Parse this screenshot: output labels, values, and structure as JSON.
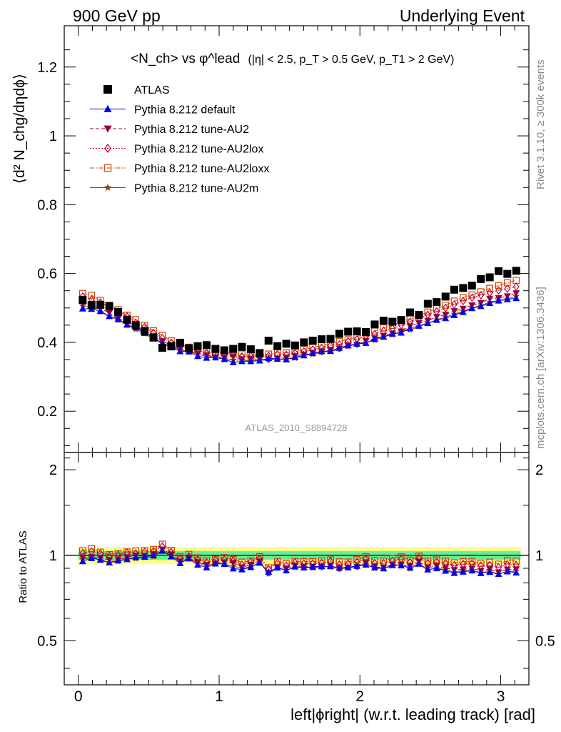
{
  "header": {
    "left": "900 GeV pp",
    "right": "Underlying Event"
  },
  "side_labels": {
    "rivet": "Rivet 3.1.10, ≥ 300k events",
    "mcplots": "mcplots.cern.ch [arXiv:1306.3436]"
  },
  "analysis_id": "ATLAS_2010_S8894728",
  "chart_data": {
    "type": "scatter",
    "title": {
      "quantity": "<N_ch> vs φ^lead",
      "cuts": "(|η| < 2.5, p_T > 0.5 GeV, p_T1 > 2 GeV)"
    },
    "xlabel": "left|ϕright| (w.r.t. leading track) [rad]",
    "ylabel": "⟨d² N_chg/dηdϕ⟩",
    "ratio_ylabel": "Ratio to ATLAS",
    "xlim": [
      -0.1,
      3.2
    ],
    "ylim": [
      0.08,
      1.32
    ],
    "ratio_ylim": [
      0.35,
      2.3
    ],
    "x_ticks": [
      0,
      1,
      2,
      3
    ],
    "y_ticks": [
      0.2,
      0.4,
      0.6,
      0.8,
      1,
      1.2
    ],
    "ratio_ticks": [
      0.5,
      1,
      2
    ],
    "x": [
      0.031,
      0.094,
      0.157,
      0.22,
      0.283,
      0.346,
      0.408,
      0.471,
      0.534,
      0.597,
      0.66,
      0.723,
      0.785,
      0.848,
      0.911,
      0.974,
      1.037,
      1.1,
      1.162,
      1.225,
      1.288,
      1.351,
      1.414,
      1.477,
      1.539,
      1.602,
      1.665,
      1.728,
      1.791,
      1.854,
      1.916,
      1.979,
      2.042,
      2.105,
      2.168,
      2.231,
      2.293,
      2.356,
      2.419,
      2.482,
      2.545,
      2.608,
      2.67,
      2.733,
      2.796,
      2.859,
      2.922,
      2.985,
      3.047,
      3.11
    ],
    "legend": [
      {
        "label": "ATLAS",
        "color": "#000000",
        "marker": "square-filled",
        "line": "none"
      },
      {
        "label": "Pythia 8.212 default",
        "color": "#0000ee",
        "marker": "triangle-up",
        "line": "solid"
      },
      {
        "label": "Pythia 8.212 tune-AU2",
        "color": "#990033",
        "marker": "triangle-down",
        "line": "dashed"
      },
      {
        "label": "Pythia 8.212 tune-AU2lox",
        "color": "#cc0033",
        "marker": "diamond-open",
        "line": "dotted"
      },
      {
        "label": "Pythia 8.212 tune-AU2loxx",
        "color": "#cc4400",
        "marker": "square-open",
        "line": "dashdot"
      },
      {
        "label": "Pythia 8.212 tune-AU2m",
        "color": "#994400",
        "marker": "star",
        "line": "solid"
      }
    ],
    "series": [
      {
        "name": "ATLAS",
        "values": [
          0.523,
          0.509,
          0.509,
          0.505,
          0.488,
          0.466,
          0.45,
          0.433,
          0.414,
          0.384,
          0.389,
          0.399,
          0.383,
          0.389,
          0.392,
          0.381,
          0.377,
          0.381,
          0.387,
          0.38,
          0.369,
          0.405,
          0.389,
          0.396,
          0.391,
          0.4,
          0.405,
          0.409,
          0.41,
          0.425,
          0.431,
          0.432,
          0.43,
          0.452,
          0.463,
          0.46,
          0.465,
          0.487,
          0.48,
          0.512,
          0.517,
          0.533,
          0.553,
          0.558,
          0.565,
          0.584,
          0.589,
          0.607,
          0.599,
          0.608
        ]
      },
      {
        "name": "Pythia 8.212 default",
        "values": [
          0.498,
          0.497,
          0.491,
          0.476,
          0.468,
          0.451,
          0.443,
          0.427,
          0.414,
          0.398,
          0.385,
          0.374,
          0.373,
          0.36,
          0.355,
          0.356,
          0.351,
          0.342,
          0.345,
          0.345,
          0.347,
          0.354,
          0.352,
          0.35,
          0.357,
          0.362,
          0.369,
          0.374,
          0.375,
          0.384,
          0.391,
          0.396,
          0.398,
          0.41,
          0.416,
          0.425,
          0.428,
          0.441,
          0.448,
          0.456,
          0.465,
          0.47,
          0.479,
          0.488,
          0.499,
          0.505,
          0.514,
          0.521,
          0.525,
          0.528
        ]
      },
      {
        "name": "Pythia 8.212 tune-AU2",
        "values": [
          0.514,
          0.502,
          0.498,
          0.486,
          0.469,
          0.459,
          0.449,
          0.43,
          0.418,
          0.403,
          0.392,
          0.38,
          0.374,
          0.368,
          0.363,
          0.357,
          0.356,
          0.358,
          0.351,
          0.352,
          0.351,
          0.35,
          0.352,
          0.356,
          0.36,
          0.365,
          0.369,
          0.372,
          0.377,
          0.382,
          0.39,
          0.393,
          0.404,
          0.412,
          0.419,
          0.426,
          0.432,
          0.447,
          0.456,
          0.463,
          0.474,
          0.481,
          0.491,
          0.498,
          0.508,
          0.515,
          0.527,
          0.529,
          0.534,
          0.543
        ]
      },
      {
        "name": "Pythia 8.212 tune-AU2lox",
        "values": [
          0.533,
          0.525,
          0.516,
          0.503,
          0.49,
          0.476,
          0.457,
          0.445,
          0.428,
          0.413,
          0.399,
          0.39,
          0.38,
          0.376,
          0.37,
          0.367,
          0.364,
          0.365,
          0.359,
          0.361,
          0.359,
          0.361,
          0.366,
          0.364,
          0.369,
          0.374,
          0.379,
          0.384,
          0.391,
          0.394,
          0.403,
          0.409,
          0.418,
          0.424,
          0.434,
          0.44,
          0.45,
          0.46,
          0.47,
          0.48,
          0.49,
          0.5,
          0.51,
          0.52,
          0.53,
          0.537,
          0.544,
          0.551,
          0.556,
          0.562
        ]
      },
      {
        "name": "Pythia 8.212 tune-AU2loxx",
        "values": [
          0.542,
          0.537,
          0.522,
          0.508,
          0.495,
          0.479,
          0.466,
          0.45,
          0.434,
          0.42,
          0.405,
          0.395,
          0.386,
          0.381,
          0.375,
          0.369,
          0.37,
          0.368,
          0.366,
          0.363,
          0.365,
          0.366,
          0.37,
          0.37,
          0.372,
          0.38,
          0.385,
          0.391,
          0.395,
          0.403,
          0.408,
          0.417,
          0.425,
          0.433,
          0.442,
          0.449,
          0.459,
          0.468,
          0.477,
          0.488,
          0.498,
          0.508,
          0.52,
          0.53,
          0.538,
          0.547,
          0.557,
          0.565,
          0.573,
          0.58
        ]
      },
      {
        "name": "Pythia 8.212 tune-AU2m",
        "values": [
          0.506,
          0.501,
          0.488,
          0.476,
          0.464,
          0.452,
          0.438,
          0.425,
          0.409,
          0.398,
          0.388,
          0.378,
          0.373,
          0.366,
          0.359,
          0.357,
          0.351,
          0.349,
          0.348,
          0.346,
          0.348,
          0.349,
          0.351,
          0.351,
          0.354,
          0.362,
          0.365,
          0.372,
          0.373,
          0.38,
          0.389,
          0.394,
          0.399,
          0.406,
          0.416,
          0.422,
          0.432,
          0.436,
          0.446,
          0.455,
          0.466,
          0.474,
          0.482,
          0.491,
          0.5,
          0.507,
          0.517,
          0.522,
          0.526,
          0.534
        ]
      }
    ],
    "ratio_band": {
      "inner_half_width": 0.035,
      "outer_half_width": 0.07,
      "inner_color": "#66ee99",
      "outer_color": "#ffff88"
    }
  }
}
